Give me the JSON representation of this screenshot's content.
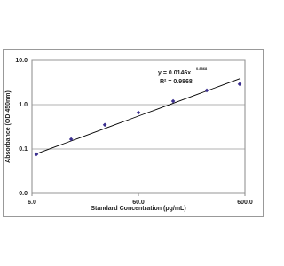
{
  "chart_data": {
    "type": "scatter",
    "x_label": "Standard Concentration (pg/mL)",
    "y_label": "Absorbance (OD 450nm)",
    "x": [
      6.6,
      14,
      29,
      60,
      127,
      263,
      535
    ],
    "series": [
      {
        "color": "#3b2f8f",
        "values": [
          0.076,
          0.166,
          0.35,
          0.66,
          1.2,
          2.1,
          2.9
        ]
      }
    ],
    "xlog": true,
    "ylog": true,
    "xlim": [
      6,
      600
    ],
    "ylim": [
      0.01,
      10
    ],
    "xticks": [
      {
        "value": 6,
        "label": "6.0"
      },
      {
        "value": 60,
        "label": "60.0"
      },
      {
        "value": 600,
        "label": "600.0"
      }
    ],
    "yticks": [
      {
        "value": 0.01,
        "label": "0.0"
      },
      {
        "value": 0.1,
        "label": "0.1"
      },
      {
        "value": 1,
        "label": "1.0"
      },
      {
        "value": 10,
        "label": "10.0"
      }
    ],
    "grid": true,
    "trendline": {
      "coefficient": 0.0146,
      "exponent": 0.8868,
      "color": "#000000",
      "equation": "y = 0.0146x",
      "equation_exponent": "0.8868",
      "r_squared": "R² = 0.9868"
    }
  }
}
